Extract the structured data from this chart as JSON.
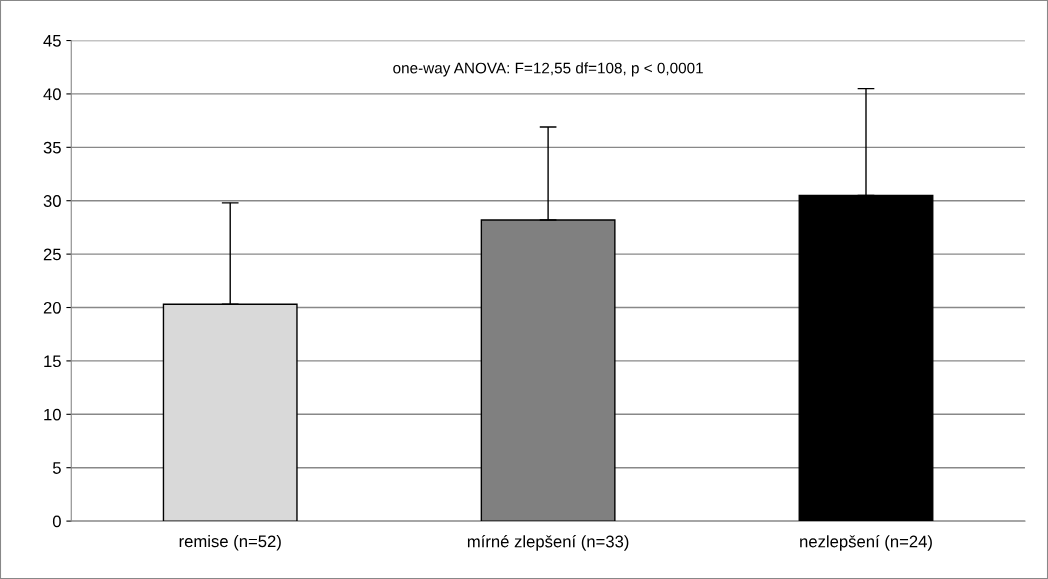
{
  "chart_data": {
    "type": "bar",
    "categories": [
      "remise (n=52)",
      "mírné zlepšení (n=33)",
      "nezlepšení (n=24)"
    ],
    "values": [
      20.3,
      28.2,
      30.5
    ],
    "colors": [
      "#d9d9d9",
      "#808080",
      "#000000"
    ],
    "errors": [
      [
        20.3,
        29.8
      ],
      [
        28.2,
        36.9
      ],
      [
        30.5,
        40.5
      ]
    ],
    "ylim": [
      0,
      45
    ],
    "yticks": [
      0,
      5,
      10,
      15,
      20,
      25,
      30,
      35,
      40,
      45
    ],
    "grid": "y",
    "annotations": [
      "one-way ANOVA: F=12,55 df=108, p < 0,0001"
    ]
  }
}
